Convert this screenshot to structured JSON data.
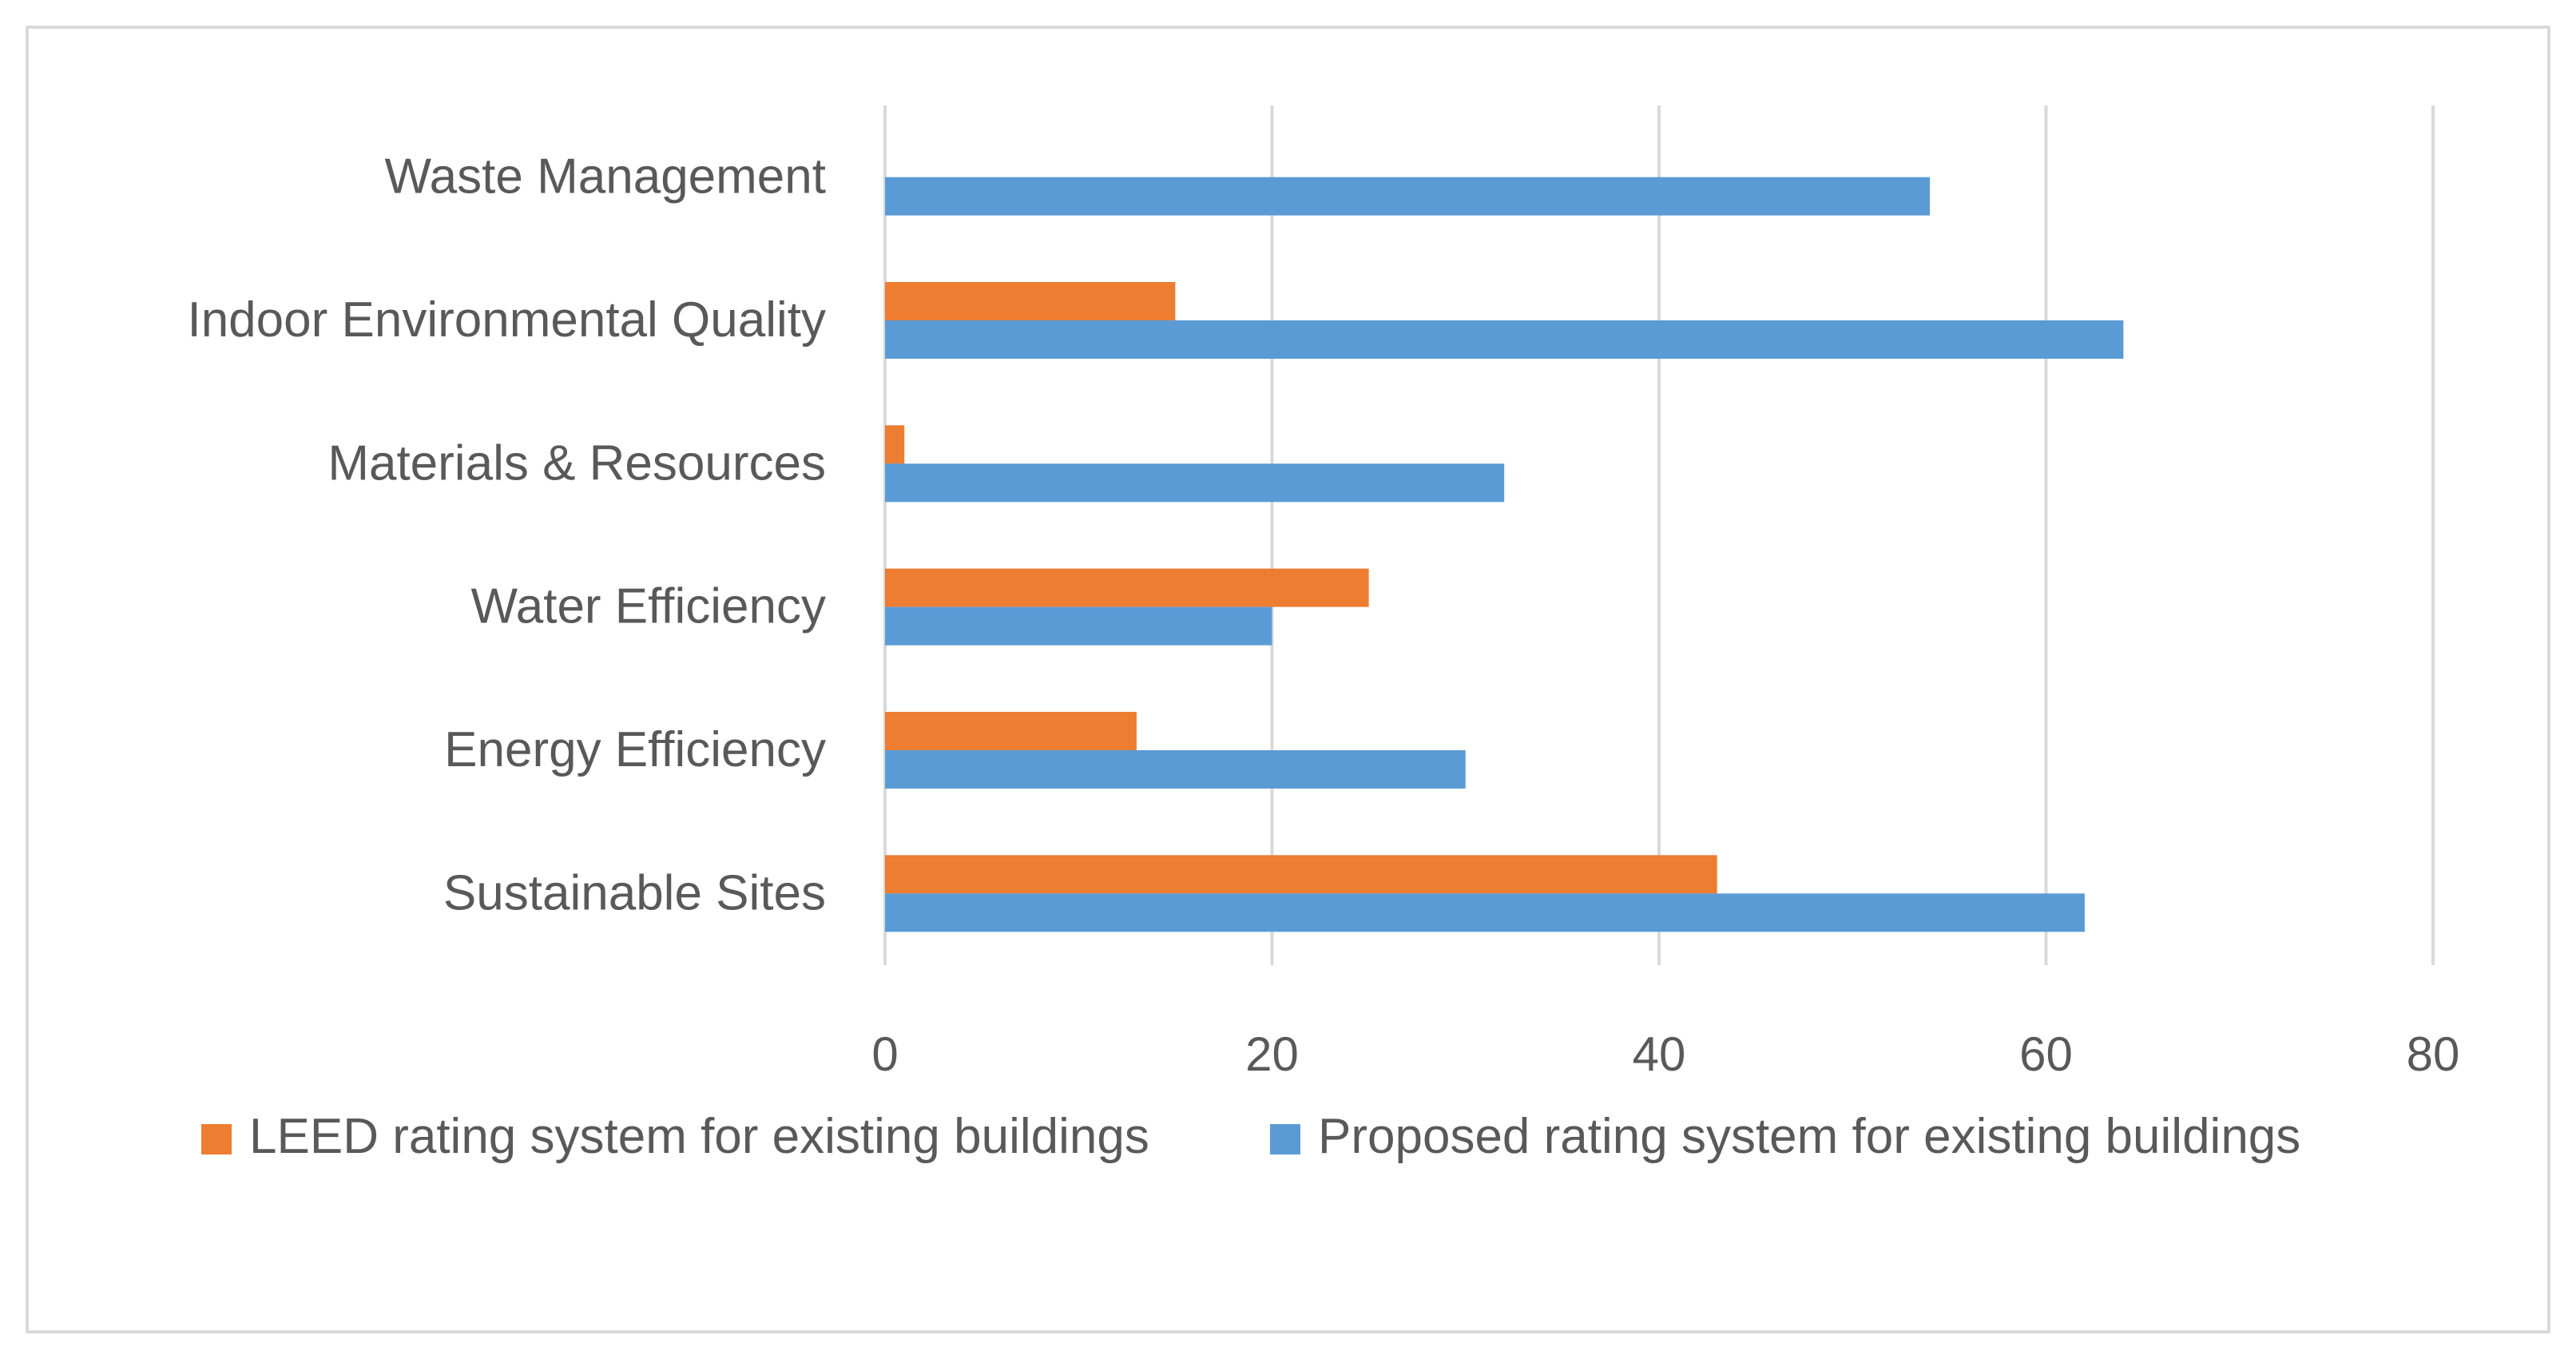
{
  "colors": {
    "leed": "#ED7D31",
    "proposed": "#5B9BD5",
    "grid": "#D9D9D9",
    "text": "#595959",
    "border": "#D9D9D9"
  },
  "chart_data": {
    "type": "bar",
    "orientation": "horizontal",
    "title": "",
    "xlabel": "",
    "ylabel": "",
    "xlim": [
      0,
      80
    ],
    "ticks": [
      "0",
      "20",
      "40",
      "60",
      "80"
    ],
    "tick_values": [
      0,
      20,
      40,
      60,
      80
    ],
    "grid": true,
    "legend_position": "bottom",
    "categories": [
      "Waste Management",
      "Indoor Environmental Quality",
      "Materials & Resources",
      "Water Efficiency",
      "Energy Efficiency",
      "Sustainable Sites"
    ],
    "series": [
      {
        "name": "LEED rating system for existing buildings",
        "key": "leed",
        "values": [
          0,
          15,
          1,
          25,
          13,
          43
        ]
      },
      {
        "name": "Proposed rating system for existing buildings",
        "key": "proposed",
        "values": [
          54,
          64,
          32,
          20,
          30,
          62
        ]
      }
    ]
  }
}
